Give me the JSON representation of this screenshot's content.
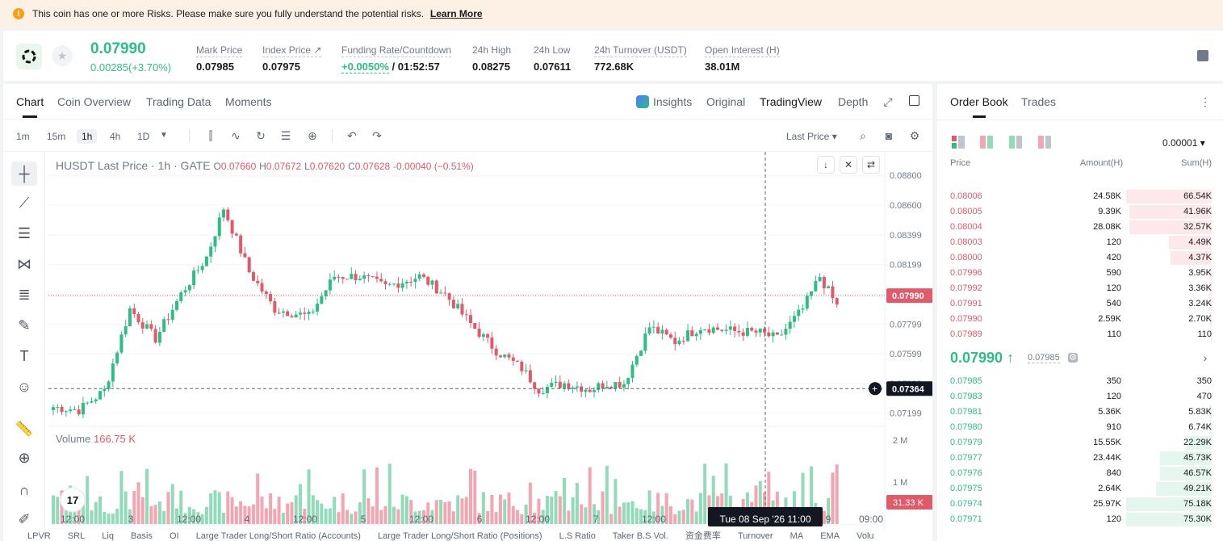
{
  "banner": {
    "icon": "warning-icon",
    "text": "This coin has one or more Risks. Please make sure you fully understand the potential risks.",
    "link": "Learn More"
  },
  "header": {
    "price": "0.07990",
    "change": "0.00285(+3.70%)",
    "stats": [
      {
        "label": "Mark Price",
        "value": "0.07985"
      },
      {
        "label": "Index Price ↗",
        "value": "0.07975"
      },
      {
        "label": "Funding Rate/Countdown",
        "value_green": "+0.0050%",
        "value": " / 01:52:57"
      },
      {
        "label": "24h High",
        "value": "0.08275"
      },
      {
        "label": "24h Low",
        "value": "0.07611"
      },
      {
        "label": "24h Turnover (USDT)",
        "value": "772.68K"
      },
      {
        "label": "Open Interest (H)",
        "value": "38.01M"
      }
    ]
  },
  "chart_tabs": [
    "Chart",
    "Coin Overview",
    "Trading Data",
    "Moments"
  ],
  "view_tabs": {
    "insights": "Insights",
    "original": "Original",
    "tradingview": "TradingView",
    "depth": "Depth"
  },
  "timeframes": [
    "1m",
    "15m",
    "1h",
    "4h",
    "1D"
  ],
  "active_timeframe": "1h",
  "last_price_label": "Last Price",
  "legend": {
    "title": "HUSDT Last Price · 1h · GATE",
    "o_label": "O",
    "o": "0.07660",
    "h_label": "H",
    "h": "0.07672",
    "l_label": "L",
    "l": "0.07620",
    "c_label": "C",
    "c": "0.07628",
    "chg": "-0.00040 (−0.51%)"
  },
  "volume_legend": {
    "label": "Volume",
    "value": "166.75 K"
  },
  "chart_data": {
    "type": "candlestick",
    "y_ticks": [
      "0.08800",
      "0.08600",
      "0.08399",
      "0.08199",
      "0.07999",
      "0.07799",
      "0.07599",
      "0.07399",
      "0.07199"
    ],
    "ylim": [
      0.0711,
      0.0885
    ],
    "last_price_tag": "0.07990",
    "crosshair_price_tag": "0.07364",
    "volume_ticks": [
      "2 M",
      "1 M"
    ],
    "volume_tag": "31.33 K",
    "x_ticks": [
      "12:00",
      "3",
      "12:00",
      "4",
      "12:00",
      "5",
      "12:00",
      "6",
      "12:00",
      "7",
      "12:00",
      "9",
      "09:00"
    ],
    "crosshair_time": "Tue 08 Sep '26   11:00",
    "anchors": [
      [
        0,
        0.0724
      ],
      [
        6,
        0.0722
      ],
      [
        12,
        0.0735
      ],
      [
        18,
        0.079
      ],
      [
        24,
        0.077
      ],
      [
        30,
        0.08
      ],
      [
        36,
        0.0825
      ],
      [
        40,
        0.0858
      ],
      [
        46,
        0.0815
      ],
      [
        52,
        0.079
      ],
      [
        60,
        0.0785
      ],
      [
        66,
        0.0812
      ],
      [
        72,
        0.0812
      ],
      [
        78,
        0.0805
      ],
      [
        86,
        0.0812
      ],
      [
        92,
        0.08
      ],
      [
        98,
        0.078
      ],
      [
        104,
        0.0762
      ],
      [
        110,
        0.075
      ],
      [
        114,
        0.0736
      ],
      [
        120,
        0.074
      ],
      [
        126,
        0.0736
      ],
      [
        130,
        0.074
      ],
      [
        134,
        0.074
      ],
      [
        140,
        0.0778
      ],
      [
        146,
        0.0768
      ],
      [
        152,
        0.0778
      ],
      [
        160,
        0.0775
      ],
      [
        166,
        0.0774
      ],
      [
        170,
        0.077
      ],
      [
        176,
        0.079
      ],
      [
        180,
        0.0812
      ],
      [
        184,
        0.0792
      ]
    ]
  },
  "indicators": [
    "LPVR",
    "SRL",
    "Liq",
    "Basis",
    "OI",
    "Large Trader Long/Short Ratio (Accounts)",
    "Large Trader Long/Short Ratio (Positions)",
    "L.S Ratio",
    "Taker B.S Vol.",
    "资金费率",
    "Turnover",
    "MA",
    "EMA",
    "Volu"
  ],
  "orderbook": {
    "tabs": [
      "Order Book",
      "Trades"
    ],
    "precision": "0.00001",
    "headers": {
      "price": "Price",
      "amount": "Amount(H)",
      "sum": "Sum(H)"
    },
    "asks": [
      {
        "price": "0.08006",
        "amount": "24.58K",
        "sum": "66.54K",
        "depth": 1.0
      },
      {
        "price": "0.08005",
        "amount": "9.39K",
        "sum": "41.96K",
        "depth": 0.96
      },
      {
        "price": "0.08004",
        "amount": "28.08K",
        "sum": "32.57K",
        "depth": 0.96
      },
      {
        "price": "0.08003",
        "amount": "120",
        "sum": "4.49K",
        "depth": 0.5
      },
      {
        "price": "0.08000",
        "amount": "420",
        "sum": "4.37K",
        "depth": 0.48
      },
      {
        "price": "0.07996",
        "amount": "590",
        "sum": "3.95K",
        "depth": 0.03
      },
      {
        "price": "0.07992",
        "amount": "120",
        "sum": "3.36K",
        "depth": 0.03
      },
      {
        "price": "0.07991",
        "amount": "540",
        "sum": "3.24K",
        "depth": 0.03
      },
      {
        "price": "0.07990",
        "amount": "2.59K",
        "sum": "2.70K",
        "depth": 0.02
      },
      {
        "price": "0.07989",
        "amount": "110",
        "sum": "110",
        "depth": 0.01
      }
    ],
    "mid_price": "0.07990 ↑",
    "mark_price": "0.07985",
    "bids": [
      {
        "price": "0.07985",
        "amount": "350",
        "sum": "350",
        "depth": 0.0
      },
      {
        "price": "0.07983",
        "amount": "120",
        "sum": "470",
        "depth": 0.0
      },
      {
        "price": "0.07981",
        "amount": "5.36K",
        "sum": "5.83K",
        "depth": 0.03
      },
      {
        "price": "0.07980",
        "amount": "910",
        "sum": "6.74K",
        "depth": 0.03
      },
      {
        "price": "0.07979",
        "amount": "15.55K",
        "sum": "22.29K",
        "depth": 0.3
      },
      {
        "price": "0.07977",
        "amount": "23.44K",
        "sum": "45.73K",
        "depth": 0.6
      },
      {
        "price": "0.07976",
        "amount": "840",
        "sum": "46.57K",
        "depth": 0.6
      },
      {
        "price": "0.07975",
        "amount": "2.64K",
        "sum": "49.21K",
        "depth": 0.65
      },
      {
        "price": "0.07974",
        "amount": "25.97K",
        "sum": "75.18K",
        "depth": 1.0
      },
      {
        "price": "0.07971",
        "amount": "120",
        "sum": "75.30K",
        "depth": 1.0
      }
    ]
  },
  "colors": {
    "up": "#2ebd85",
    "down": "#e05a6a",
    "up_vol": "#92dbb9",
    "down_vol": "#f3a6b1"
  }
}
